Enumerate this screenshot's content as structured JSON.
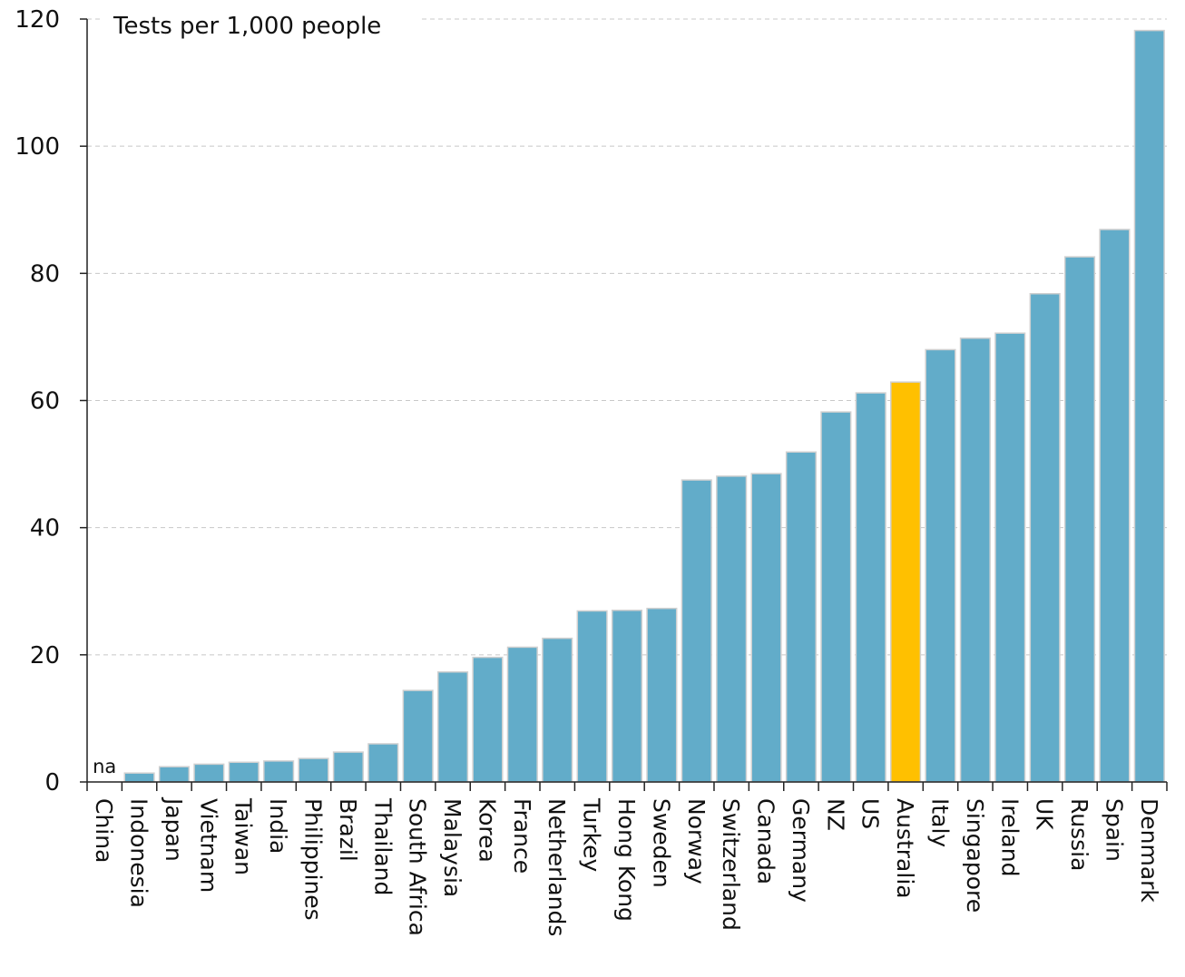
{
  "chart_data": {
    "type": "bar",
    "title": "",
    "ylabel": "Tests per 1,000 people",
    "xlabel": "",
    "ylim": [
      0,
      120
    ],
    "yticks": [
      0,
      20,
      40,
      60,
      80,
      100,
      120
    ],
    "grid": true,
    "categories": [
      "China",
      "Indonesia",
      "Japan",
      "Vietnam",
      "Taiwan",
      "India",
      "Philippines",
      "Brazil",
      "Thailand",
      "South Africa",
      "Malaysia",
      "Korea",
      "France",
      "Netherlands",
      "Turkey",
      "Hong Kong",
      "Sweden",
      "Norway",
      "Switzerland",
      "Canada",
      "Germany",
      "NZ",
      "US",
      "Australia",
      "Italy",
      "Singapore",
      "Ireland",
      "UK",
      "Russia",
      "Spain",
      "Denmark"
    ],
    "values": [
      null,
      1.4,
      2.4,
      2.8,
      3.1,
      3.3,
      3.7,
      4.7,
      6.0,
      14.4,
      17.3,
      19.6,
      21.2,
      22.6,
      26.9,
      27.0,
      27.3,
      47.5,
      48.1,
      48.5,
      51.9,
      58.2,
      61.2,
      62.9,
      68.0,
      69.8,
      70.6,
      76.8,
      82.6,
      86.9,
      118.2
    ],
    "missing_label": "na",
    "highlight": "Australia",
    "colors": {
      "bar": "#62acc9",
      "highlight": "#ffc000",
      "bar_outline": "#d0d0d0"
    }
  }
}
